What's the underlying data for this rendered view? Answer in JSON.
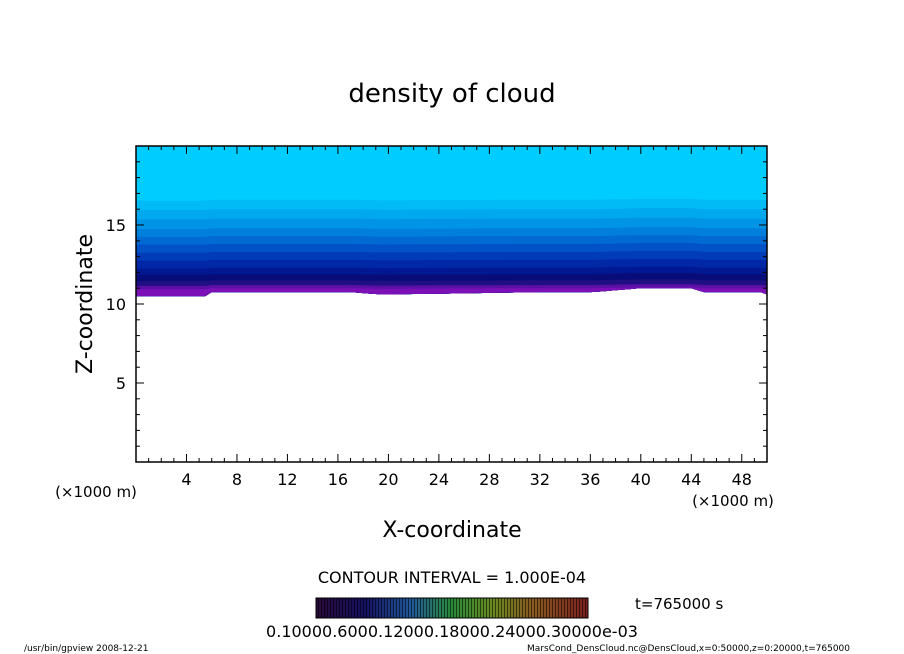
{
  "chart_data": {
    "type": "heatmap",
    "title": "density of cloud",
    "xlabel": "X-coordinate",
    "ylabel": "Z-coordinate",
    "x_unit_label": "(×1000 m)",
    "y_unit_label": "(×1000 m)",
    "xlim": [
      0,
      50
    ],
    "ylim": [
      0,
      20
    ],
    "x_ticks": [
      "4",
      "8",
      "12",
      "16",
      "20",
      "24",
      "28",
      "32",
      "36",
      "40",
      "44",
      "48"
    ],
    "x_tick_values": [
      4,
      8,
      12,
      16,
      20,
      24,
      28,
      32,
      36,
      40,
      44,
      48
    ],
    "y_ticks": [
      "5",
      "10",
      "15"
    ],
    "y_tick_values": [
      5,
      10,
      15
    ],
    "cloud_base_z": [
      [
        0,
        10.5
      ],
      [
        5.5,
        10.5
      ],
      [
        6,
        10.75
      ],
      [
        17,
        10.75
      ],
      [
        19.5,
        10.6
      ],
      [
        32,
        10.75
      ],
      [
        36,
        10.75
      ],
      [
        37,
        10.8
      ],
      [
        40,
        11.0
      ],
      [
        44,
        11.0
      ],
      [
        45,
        10.75
      ],
      [
        49.5,
        10.75
      ],
      [
        50,
        10.6
      ]
    ],
    "layers": [
      {
        "z_top": 20.0,
        "color": "#00ccff"
      },
      {
        "z_top": 16.6,
        "color": "#00bbf6"
      },
      {
        "z_top": 16.0,
        "color": "#00a8ee"
      },
      {
        "z_top": 15.4,
        "color": "#0094e6"
      },
      {
        "z_top": 14.8,
        "color": "#007fdc"
      },
      {
        "z_top": 14.3,
        "color": "#0069d2"
      },
      {
        "z_top": 13.8,
        "color": "#0052c6"
      },
      {
        "z_top": 13.3,
        "color": "#003cb8"
      },
      {
        "z_top": 12.8,
        "color": "#0028a6"
      },
      {
        "z_top": 12.3,
        "color": "#001892"
      },
      {
        "z_top": 11.9,
        "color": "#080c78"
      },
      {
        "z_top": 11.5,
        "color": "#200f82"
      },
      {
        "z_top": 11.2,
        "color": "#5a0fa6"
      },
      {
        "z_top": 11.0,
        "color": "#7a10b6"
      }
    ],
    "contour_interval": "CONTOUR INTERVAL = 1.000E-04",
    "time_label": "t=765000 s",
    "colorbar_labels": "0.10000.6000.12000.18000.24000.30000e-03"
  },
  "footer": {
    "left": "/usr/bin/gpview  2008-12-21",
    "right": "MarsCond_DensCloud.nc@DensCloud,x=0:50000,z=0:20000,t=765000"
  }
}
